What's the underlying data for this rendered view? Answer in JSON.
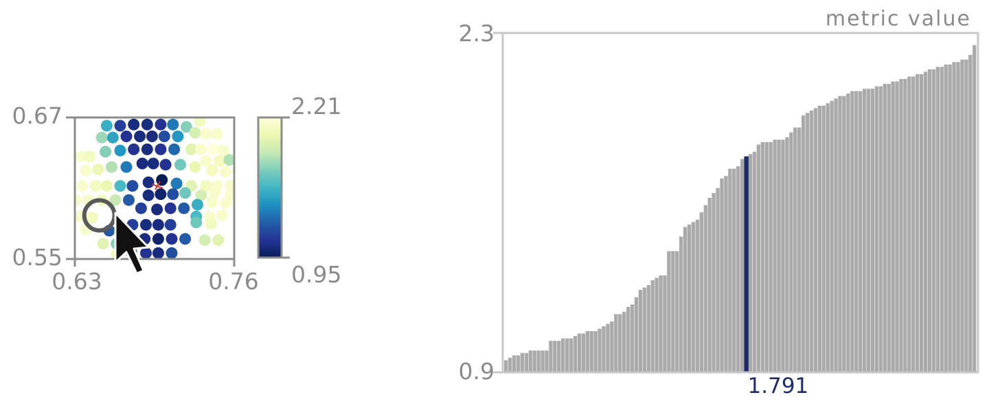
{
  "colors": {
    "axis": "#bdbdbd",
    "tick_text": "#8a8a8a",
    "bar": "#aaaaaa",
    "highlight": "#1d2d6b",
    "colormap": [
      "#ffffd9",
      "#edf8b1",
      "#c7e9b4",
      "#7fcdbb",
      "#41b6c4",
      "#1d91c0",
      "#225ea8",
      "#253494",
      "#081d58"
    ]
  },
  "chart_data": [
    {
      "type": "scatter",
      "subtype": "colored-point-map",
      "xlim": [
        0.63,
        0.76
      ],
      "ylim": [
        0.55,
        0.67
      ],
      "x_ticks": [
        "0.63",
        "0.76"
      ],
      "y_ticks": [
        "0.67",
        "0.55"
      ],
      "colorbar": {
        "min": 0.95,
        "max": 2.21,
        "labels": [
          "2.21",
          "0.95"
        ],
        "colormap": "YlGnBu"
      },
      "highlighted_point": {
        "x": 0.65,
        "y": 0.587
      },
      "cursor_icon": "mouse-pointer-icon",
      "points": [
        {
          "x": 0.656,
          "y": 0.663,
          "v": 1.55
        },
        {
          "x": 0.667,
          "y": 0.663,
          "v": 1.15
        },
        {
          "x": 0.678,
          "y": 0.664,
          "v": 1.05
        },
        {
          "x": 0.689,
          "y": 0.664,
          "v": 1.05
        },
        {
          "x": 0.7,
          "y": 0.664,
          "v": 1.1
        },
        {
          "x": 0.71,
          "y": 0.664,
          "v": 1.35
        },
        {
          "x": 0.721,
          "y": 0.662,
          "v": 1.75
        },
        {
          "x": 0.732,
          "y": 0.667,
          "v": 2.1
        },
        {
          "x": 0.652,
          "y": 0.653,
          "v": 1.8
        },
        {
          "x": 0.661,
          "y": 0.653,
          "v": 1.5
        },
        {
          "x": 0.672,
          "y": 0.654,
          "v": 1.1
        },
        {
          "x": 0.683,
          "y": 0.654,
          "v": 1.05
        },
        {
          "x": 0.693,
          "y": 0.654,
          "v": 1.05
        },
        {
          "x": 0.703,
          "y": 0.654,
          "v": 1.2
        },
        {
          "x": 0.714,
          "y": 0.654,
          "v": 1.45
        },
        {
          "x": 0.728,
          "y": 0.657,
          "v": 1.95
        },
        {
          "x": 0.737,
          "y": 0.656,
          "v": 2.15
        },
        {
          "x": 0.746,
          "y": 0.656,
          "v": 2.15
        },
        {
          "x": 0.655,
          "y": 0.641,
          "v": 1.75
        },
        {
          "x": 0.667,
          "y": 0.642,
          "v": 1.45
        },
        {
          "x": 0.678,
          "y": 0.643,
          "v": 1.1
        },
        {
          "x": 0.689,
          "y": 0.643,
          "v": 1.05
        },
        {
          "x": 0.7,
          "y": 0.643,
          "v": 1.1
        },
        {
          "x": 0.711,
          "y": 0.643,
          "v": 1.3
        },
        {
          "x": 0.725,
          "y": 0.643,
          "v": 2.0
        },
        {
          "x": 0.733,
          "y": 0.643,
          "v": 2.15
        },
        {
          "x": 0.743,
          "y": 0.643,
          "v": 2.2
        },
        {
          "x": 0.751,
          "y": 0.642,
          "v": 2.15
        },
        {
          "x": 0.635,
          "y": 0.637,
          "v": 2.15
        },
        {
          "x": 0.642,
          "y": 0.637,
          "v": 2.1
        },
        {
          "x": 0.737,
          "y": 0.633,
          "v": 2.15
        },
        {
          "x": 0.748,
          "y": 0.633,
          "v": 2.1
        },
        {
          "x": 0.756,
          "y": 0.634,
          "v": 1.85
        },
        {
          "x": 0.639,
          "y": 0.625,
          "v": 2.15
        },
        {
          "x": 0.649,
          "y": 0.626,
          "v": 2.05
        },
        {
          "x": 0.66,
          "y": 0.628,
          "v": 1.85
        },
        {
          "x": 0.672,
          "y": 0.628,
          "v": 1.35
        },
        {
          "x": 0.685,
          "y": 0.631,
          "v": 1.05
        },
        {
          "x": 0.694,
          "y": 0.631,
          "v": 1.05
        },
        {
          "x": 0.704,
          "y": 0.63,
          "v": 1.1
        },
        {
          "x": 0.716,
          "y": 0.63,
          "v": 1.7
        },
        {
          "x": 0.728,
          "y": 0.628,
          "v": 2.05
        },
        {
          "x": 0.742,
          "y": 0.625,
          "v": 2.1
        },
        {
          "x": 0.753,
          "y": 0.624,
          "v": 2.15
        },
        {
          "x": 0.636,
          "y": 0.612,
          "v": 2.15
        },
        {
          "x": 0.647,
          "y": 0.612,
          "v": 2.1
        },
        {
          "x": 0.656,
          "y": 0.612,
          "v": 2.05
        },
        {
          "x": 0.667,
          "y": 0.612,
          "v": 1.6
        },
        {
          "x": 0.677,
          "y": 0.612,
          "v": 1.2
        },
        {
          "x": 0.69,
          "y": 0.615,
          "v": 1.05
        },
        {
          "x": 0.701,
          "y": 0.617,
          "v": 0.95
        },
        {
          "x": 0.713,
          "y": 0.614,
          "v": 1.35
        },
        {
          "x": 0.725,
          "y": 0.612,
          "v": 2.0
        },
        {
          "x": 0.737,
          "y": 0.612,
          "v": 2.1
        },
        {
          "x": 0.746,
          "y": 0.612,
          "v": 2.15
        },
        {
          "x": 0.757,
          "y": 0.612,
          "v": 2.15
        },
        {
          "x": 0.631,
          "y": 0.6,
          "v": 2.15
        },
        {
          "x": 0.641,
          "y": 0.6,
          "v": 2.15
        },
        {
          "x": 0.652,
          "y": 0.6,
          "v": 2.1
        },
        {
          "x": 0.663,
          "y": 0.6,
          "v": 1.9
        },
        {
          "x": 0.674,
          "y": 0.6,
          "v": 1.25
        },
        {
          "x": 0.69,
          "y": 0.604,
          "v": 1.05
        },
        {
          "x": 0.7,
          "y": 0.605,
          "v": 1.0
        },
        {
          "x": 0.71,
          "y": 0.605,
          "v": 1.2
        },
        {
          "x": 0.72,
          "y": 0.606,
          "v": 1.7
        },
        {
          "x": 0.733,
          "y": 0.604,
          "v": 1.95
        },
        {
          "x": 0.744,
          "y": 0.606,
          "v": 2.15
        },
        {
          "x": 0.757,
          "y": 0.604,
          "v": 2.15
        },
        {
          "x": 0.684,
          "y": 0.593,
          "v": 1.15
        },
        {
          "x": 0.697,
          "y": 0.592,
          "v": 1.05
        },
        {
          "x": 0.708,
          "y": 0.593,
          "v": 1.1
        },
        {
          "x": 0.719,
          "y": 0.593,
          "v": 1.25
        },
        {
          "x": 0.73,
          "y": 0.596,
          "v": 1.55
        },
        {
          "x": 0.742,
          "y": 0.598,
          "v": 2.15
        },
        {
          "x": 0.753,
          "y": 0.597,
          "v": 2.15
        },
        {
          "x": 0.634,
          "y": 0.586,
          "v": 2.15
        },
        {
          "x": 0.644,
          "y": 0.585,
          "v": 2.1
        },
        {
          "x": 0.729,
          "y": 0.586,
          "v": 1.6
        },
        {
          "x": 0.74,
          "y": 0.586,
          "v": 2.15
        },
        {
          "x": 0.75,
          "y": 0.587,
          "v": 2.15
        },
        {
          "x": 0.639,
          "y": 0.575,
          "v": 2.15
        },
        {
          "x": 0.658,
          "y": 0.574,
          "v": 1.25
        },
        {
          "x": 0.677,
          "y": 0.579,
          "v": 1.15
        },
        {
          "x": 0.688,
          "y": 0.579,
          "v": 1.05
        },
        {
          "x": 0.698,
          "y": 0.579,
          "v": 1.05
        },
        {
          "x": 0.708,
          "y": 0.579,
          "v": 1.15
        },
        {
          "x": 0.729,
          "y": 0.581,
          "v": 1.7
        },
        {
          "x": 0.741,
          "y": 0.58,
          "v": 2.1
        },
        {
          "x": 0.653,
          "y": 0.563,
          "v": 2.0
        },
        {
          "x": 0.664,
          "y": 0.563,
          "v": 1.75
        },
        {
          "x": 0.676,
          "y": 0.564,
          "v": 1.05
        },
        {
          "x": 0.687,
          "y": 0.567,
          "v": 1.05
        },
        {
          "x": 0.698,
          "y": 0.567,
          "v": 1.0
        },
        {
          "x": 0.709,
          "y": 0.567,
          "v": 1.1
        },
        {
          "x": 0.72,
          "y": 0.567,
          "v": 1.25
        },
        {
          "x": 0.736,
          "y": 0.566,
          "v": 1.95
        },
        {
          "x": 0.747,
          "y": 0.566,
          "v": 2.0
        },
        {
          "x": 0.664,
          "y": 0.554,
          "v": 2.1
        },
        {
          "x": 0.676,
          "y": 0.556,
          "v": 1.2
        },
        {
          "x": 0.688,
          "y": 0.555,
          "v": 1.1
        },
        {
          "x": 0.698,
          "y": 0.555,
          "v": 1.05
        },
        {
          "x": 0.709,
          "y": 0.555,
          "v": 1.2
        }
      ]
    },
    {
      "type": "bar",
      "subtype": "sorted-metric-distribution",
      "title": "metric value",
      "ylim": [
        0.9,
        2.3
      ],
      "y_ticks": [
        "2.3",
        "0.9"
      ],
      "selected_label": "1.791",
      "selected_index": 59,
      "values": [
        0.95,
        0.96,
        0.97,
        0.97,
        0.98,
        0.98,
        0.99,
        0.99,
        0.99,
        0.99,
        0.99,
        1.03,
        1.03,
        1.03,
        1.04,
        1.04,
        1.04,
        1.05,
        1.06,
        1.06,
        1.07,
        1.07,
        1.07,
        1.08,
        1.09,
        1.1,
        1.11,
        1.14,
        1.14,
        1.15,
        1.17,
        1.18,
        1.21,
        1.24,
        1.25,
        1.26,
        1.28,
        1.29,
        1.3,
        1.3,
        1.4,
        1.4,
        1.4,
        1.46,
        1.5,
        1.51,
        1.52,
        1.53,
        1.56,
        1.59,
        1.62,
        1.64,
        1.66,
        1.7,
        1.71,
        1.74,
        1.74,
        1.75,
        1.78,
        1.791,
        1.8,
        1.81,
        1.84,
        1.85,
        1.85,
        1.85,
        1.86,
        1.86,
        1.86,
        1.87,
        1.89,
        1.91,
        1.91,
        1.96,
        1.97,
        1.98,
        1.99,
        2.0,
        2.0,
        2.01,
        2.02,
        2.03,
        2.04,
        2.04,
        2.05,
        2.06,
        2.06,
        2.06,
        2.07,
        2.07,
        2.07,
        2.08,
        2.08,
        2.09,
        2.09,
        2.1,
        2.1,
        2.11,
        2.11,
        2.12,
        2.12,
        2.13,
        2.13,
        2.14,
        2.15,
        2.15,
        2.16,
        2.16,
        2.17,
        2.17,
        2.18,
        2.18,
        2.19,
        2.19,
        2.21,
        2.25
      ]
    }
  ]
}
